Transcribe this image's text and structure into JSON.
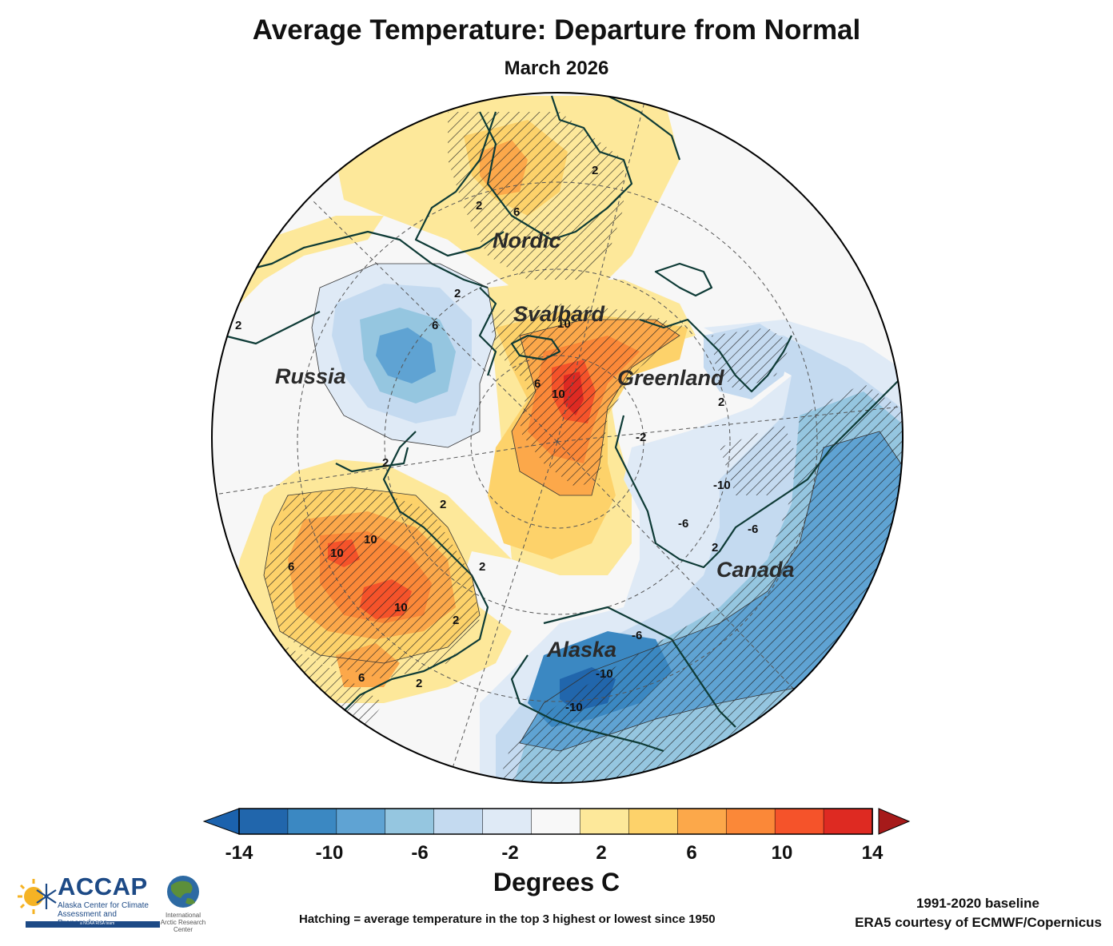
{
  "title": "Average Temperature: Departure from Normal",
  "subtitle": "March 2026",
  "regions": [
    "Nordic",
    "Svalbard",
    "Russia",
    "Greenland",
    "Canada",
    "Alaska"
  ],
  "contour_labels": [
    "2",
    "6",
    "2",
    "2",
    "10",
    "6",
    "2",
    "2",
    "6",
    "2",
    "10",
    "2",
    "2",
    "-6",
    "-2",
    "-10",
    "-6",
    "-10",
    "-6",
    "-10",
    "10",
    "10",
    "6",
    "10",
    "2",
    "2",
    "6",
    "2"
  ],
  "colorbar": {
    "title": "Degrees C",
    "ticks": [
      "-14",
      "-10",
      "-6",
      "-2",
      "2",
      "6",
      "10",
      "14"
    ],
    "colors": [
      "#2166ac",
      "#3b88c2",
      "#5fa3d3",
      "#95c6e0",
      "#c4daf0",
      "#dfeaf6",
      "#f8f8f8",
      "#fde89a",
      "#fdd26a",
      "#fca84a",
      "#fb8838",
      "#f5532a",
      "#de2a22"
    ],
    "under_color": "#1b62ad",
    "over_color": "#a61a1a"
  },
  "colors": {
    "land_outline": "#0e3b36",
    "ocean": "#f7f7f7"
  },
  "footer": {
    "hatching_note": "Hatching = average temperature in the top 3 highest or lowest since 1950",
    "baseline": "1991-2020 baseline",
    "data_credit": "ERA5 courtesy of ECMWF/Copernicus"
  },
  "logos": {
    "accap_name": "ACCAP",
    "accap_full": "Alaska Center for Climate Assessment and Preparedness",
    "accap_tag": "a NOAA RISA team",
    "iarc_name": "International Arctic Research Center"
  }
}
